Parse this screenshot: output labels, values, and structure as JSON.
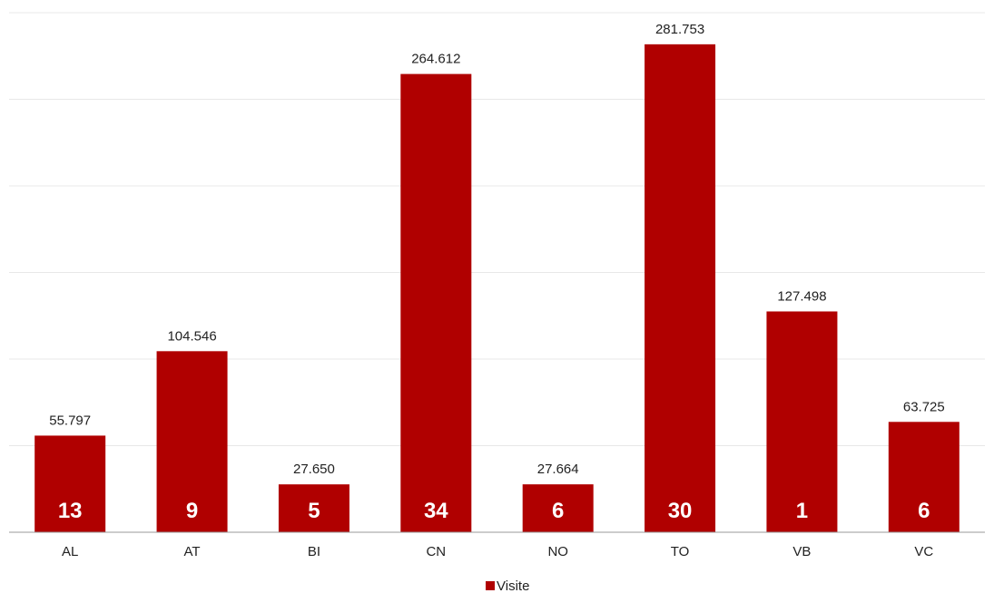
{
  "chart_data": {
    "type": "bar",
    "categories": [
      "AL",
      "AT",
      "BI",
      "CN",
      "NO",
      "TO",
      "VB",
      "VC"
    ],
    "series": [
      {
        "name": "Visite",
        "values": [
          55797,
          104546,
          27650,
          264612,
          27664,
          281753,
          127498,
          63725
        ],
        "value_labels": [
          "55.797",
          "104.546",
          "27.650",
          "264.612",
          "27.664",
          "281.753",
          "127.498",
          "63.725"
        ],
        "inner_labels": [
          "13",
          "9",
          "5",
          "34",
          "6",
          "30",
          "1",
          "6"
        ],
        "color": "#b00000"
      }
    ],
    "ylim": [
      0,
      300000
    ],
    "grid": true,
    "legend": "bottom-center",
    "xlabel": "",
    "ylabel": ""
  }
}
